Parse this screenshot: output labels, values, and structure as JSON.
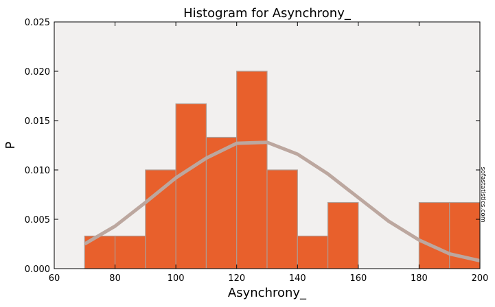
{
  "chart_data": {
    "type": "bar",
    "title": "Histogram for Asynchrony_",
    "xlabel": "Asynchrony_",
    "ylabel": "P",
    "xlim": [
      60,
      200
    ],
    "ylim": [
      0,
      0.025
    ],
    "x_ticks": [
      60,
      80,
      100,
      120,
      140,
      160,
      180,
      200
    ],
    "x_tick_labels": [
      "60",
      "80",
      "100",
      "120",
      "140",
      "160",
      "180",
      "200"
    ],
    "y_ticks": [
      0,
      0.005,
      0.01,
      0.015,
      0.02,
      0.025
    ],
    "y_tick_labels": [
      "0.000",
      "0.005",
      "0.010",
      "0.015",
      "0.020",
      "0.025"
    ],
    "bins": [
      {
        "x0": 70,
        "x1": 80,
        "value": 0.0033
      },
      {
        "x0": 80,
        "x1": 90,
        "value": 0.0033
      },
      {
        "x0": 90,
        "x1": 100,
        "value": 0.01
      },
      {
        "x0": 100,
        "x1": 110,
        "value": 0.0167
      },
      {
        "x0": 110,
        "x1": 120,
        "value": 0.0133
      },
      {
        "x0": 120,
        "x1": 130,
        "value": 0.02
      },
      {
        "x0": 130,
        "x1": 140,
        "value": 0.01
      },
      {
        "x0": 140,
        "x1": 150,
        "value": 0.0033
      },
      {
        "x0": 150,
        "x1": 160,
        "value": 0.0067
      },
      {
        "x0": 160,
        "x1": 170,
        "value": 0
      },
      {
        "x0": 170,
        "x1": 180,
        "value": 0
      },
      {
        "x0": 180,
        "x1": 190,
        "value": 0.0067
      },
      {
        "x0": 190,
        "x1": 200,
        "value": 0.0067
      }
    ],
    "curve": [
      {
        "x": 70,
        "y": 0.0025
      },
      {
        "x": 80,
        "y": 0.0043
      },
      {
        "x": 90,
        "y": 0.0067
      },
      {
        "x": 100,
        "y": 0.0092
      },
      {
        "x": 110,
        "y": 0.0112
      },
      {
        "x": 120,
        "y": 0.0127
      },
      {
        "x": 130,
        "y": 0.0128
      },
      {
        "x": 140,
        "y": 0.0116
      },
      {
        "x": 150,
        "y": 0.0096
      },
      {
        "x": 160,
        "y": 0.0072
      },
      {
        "x": 170,
        "y": 0.0048
      },
      {
        "x": 180,
        "y": 0.0029
      },
      {
        "x": 190,
        "y": 0.0015
      },
      {
        "x": 200,
        "y": 0.0008
      }
    ],
    "grid": false,
    "colors": {
      "bar_fill": "#e8602c",
      "bar_edge": "#b09a90",
      "curve": "#bca79f",
      "plot_bg": "#f2f0ef"
    }
  },
  "watermark": "sofastatistics.com"
}
